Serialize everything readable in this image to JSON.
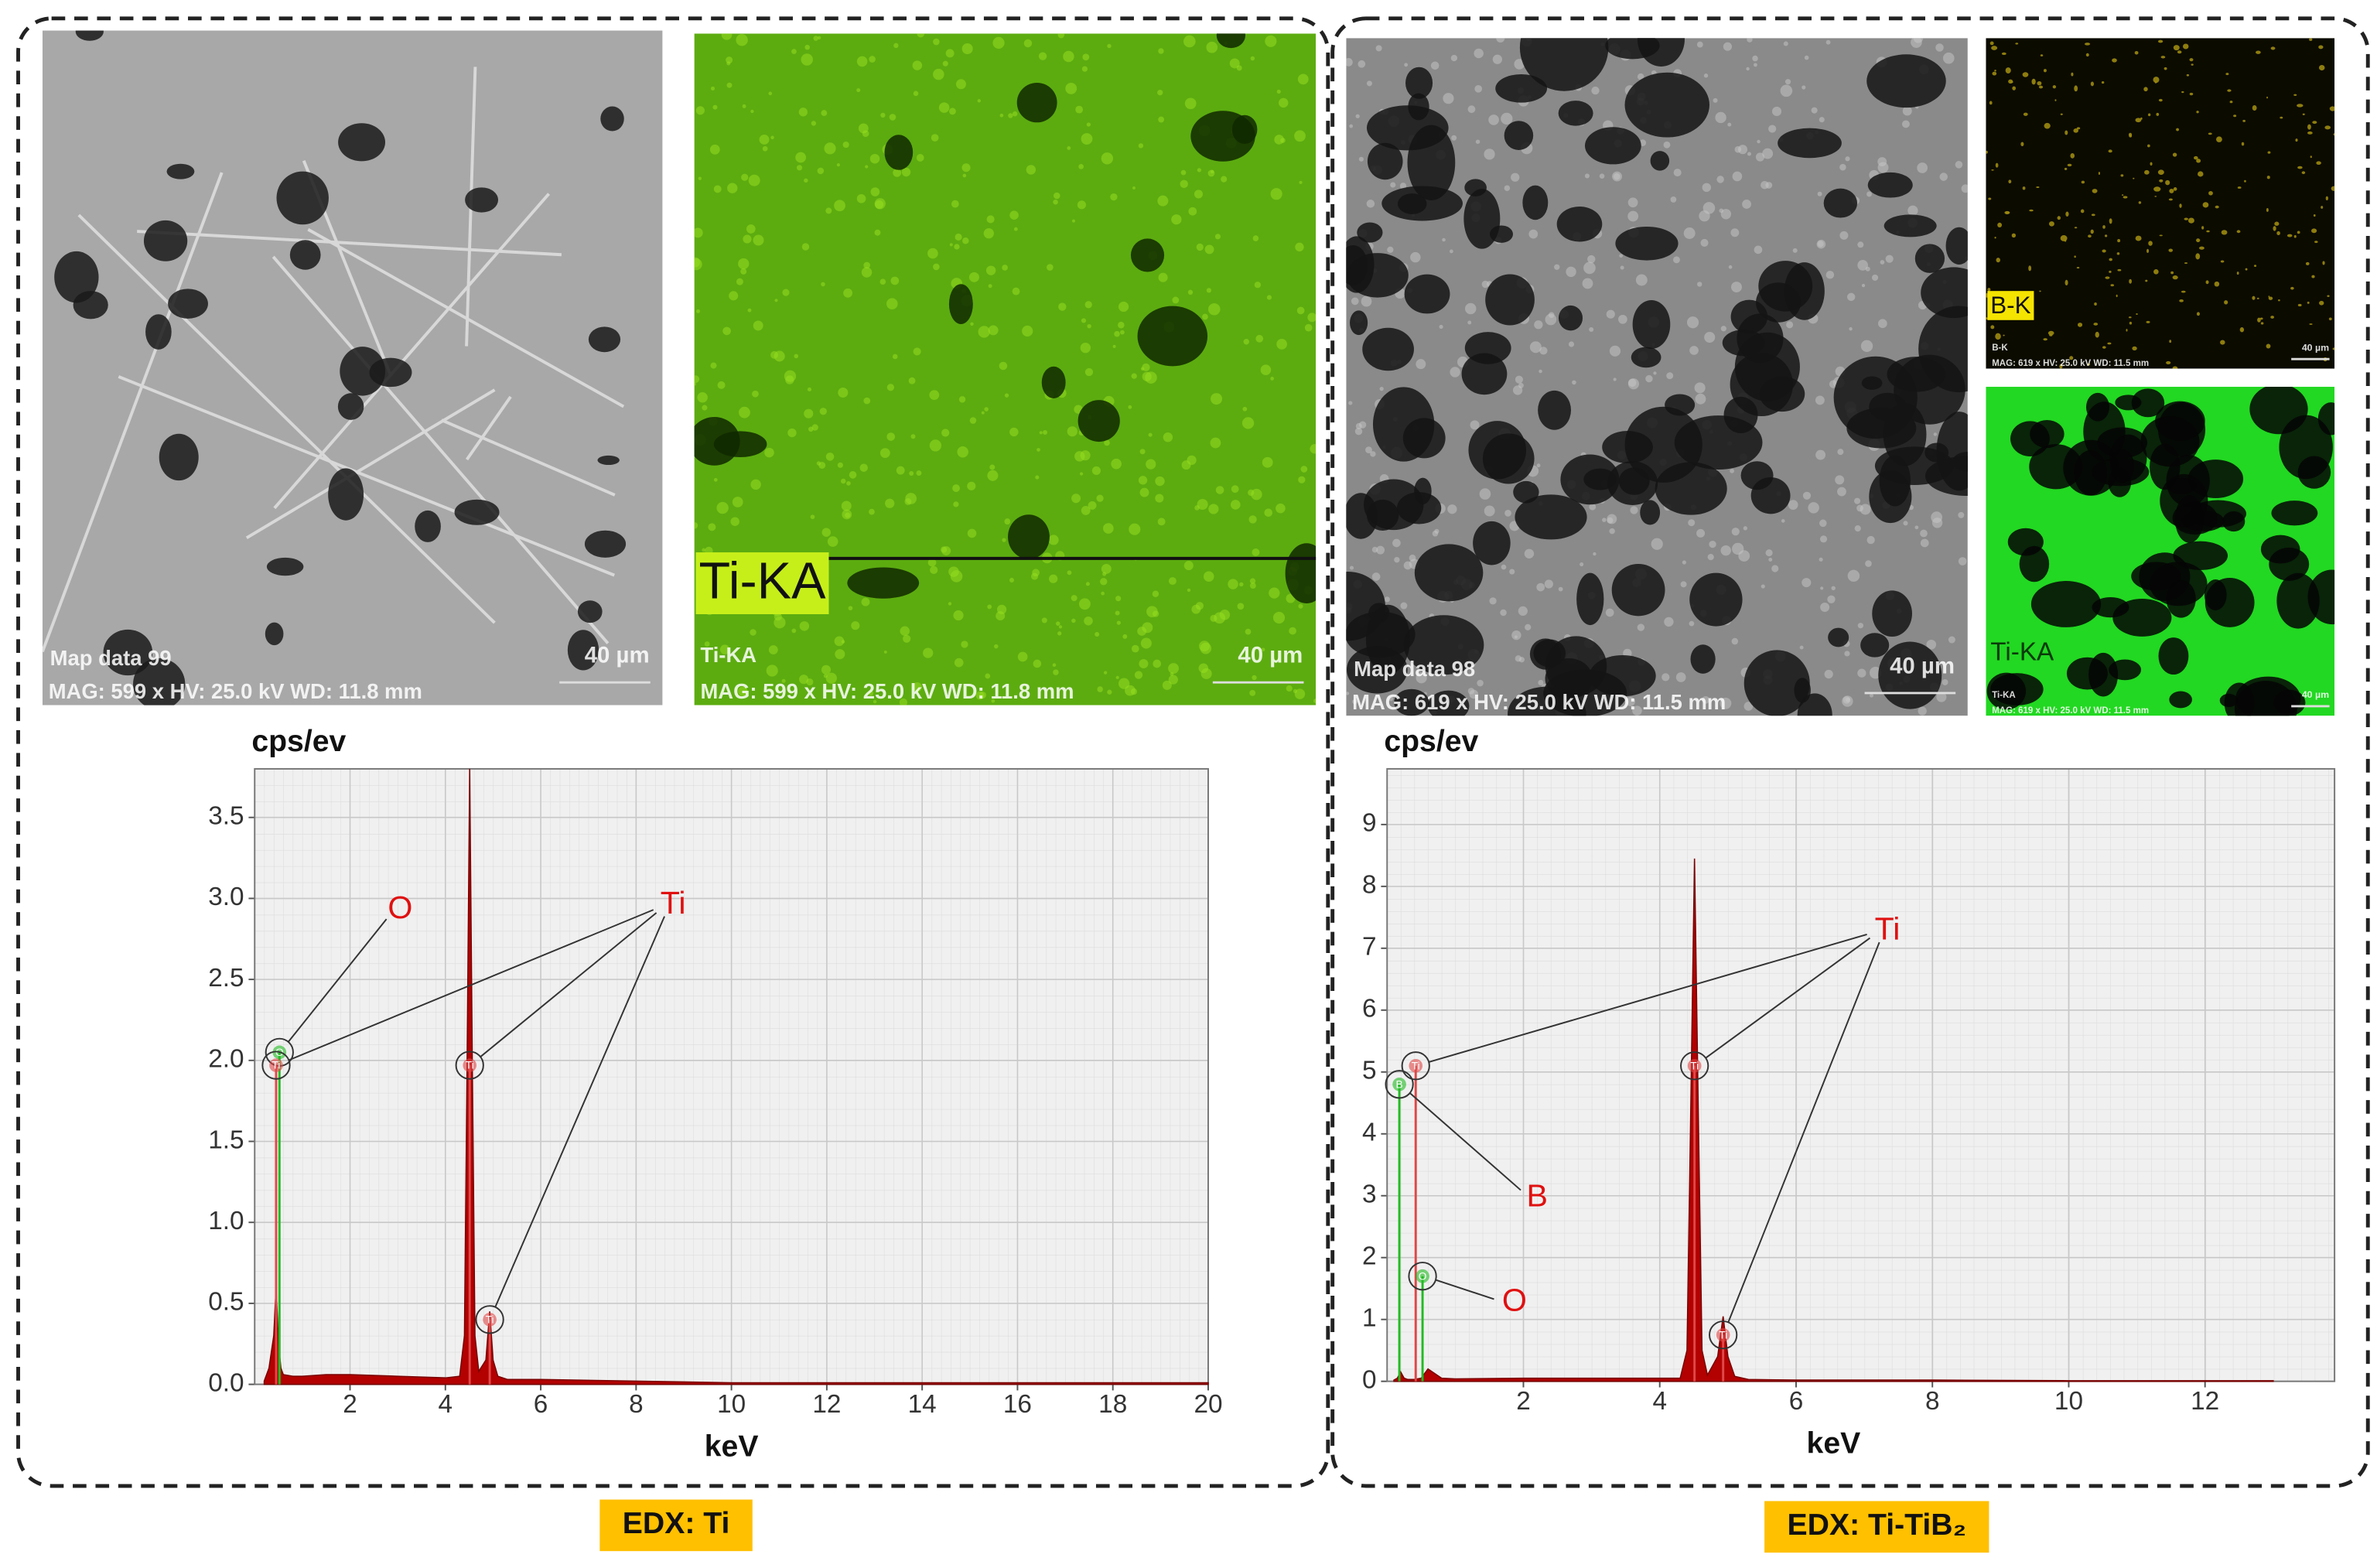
{
  "images": [
    {
      "title": "Map data 99",
      "scale_bar": "40 µm",
      "info": "MAG: 599 x HV: 25.0 kV WD: 11.8 mm"
    },
    {
      "label": "Ti-KA",
      "sublabel": "Ti-KA",
      "scale_bar": "40 µm",
      "info": "MAG: 599 x HV: 25.0 kV WD: 11.8 mm"
    },
    {
      "title": "Map data 98",
      "scale_bar": "40 µm",
      "info": "MAG: 619 x HV: 25.0 kV WD: 11.5 mm"
    },
    {
      "label": "B-K",
      "sublabel": "B-K",
      "scale_bar": "40 µm",
      "info": "MAG: 619 x HV: 25.0 kV WD: 11.5 mm"
    },
    {
      "label": "Ti-KA",
      "sublabel": "Ti-KA",
      "scale_bar": "40 µm",
      "info": "MAG: 619 x HV: 25.0 kV WD: 11.5 mm"
    }
  ],
  "chart_data": [
    {
      "type": "area",
      "caption": "EDX: Ti",
      "y_label": "cps/ev",
      "x_label": "keV",
      "color": "#b30000",
      "x": [
        0.2,
        0.3,
        0.4,
        0.45,
        0.5,
        0.55,
        0.6,
        0.8,
        1.0,
        1.5,
        2,
        3,
        4,
        4.3,
        4.4,
        4.45,
        4.51,
        4.57,
        4.62,
        4.7,
        4.85,
        4.93,
        5.0,
        5.1,
        5.3,
        6,
        8,
        10,
        12,
        14,
        16,
        18,
        20
      ],
      "values": [
        0.02,
        0.1,
        0.3,
        0.6,
        0.25,
        0.1,
        0.06,
        0.05,
        0.05,
        0.06,
        0.06,
        0.05,
        0.04,
        0.05,
        0.3,
        1.8,
        3.8,
        1.8,
        0.3,
        0.08,
        0.15,
        0.45,
        0.15,
        0.05,
        0.03,
        0.03,
        0.02,
        0.01,
        0.01,
        0.01,
        0.01,
        0.01,
        0.01
      ],
      "xlim": [
        0,
        20
      ],
      "ylim": [
        0,
        3.8
      ],
      "xticks": [
        2,
        4,
        6,
        8,
        10,
        12,
        14,
        16,
        18,
        20
      ],
      "yticks": [
        {
          "value": 0,
          "label": "0.0"
        },
        0.5,
        {
          "value": 1,
          "label": "1.0"
        },
        1.5,
        {
          "value": 2,
          "label": "2.0"
        },
        2.5,
        {
          "value": 3,
          "label": "3.0"
        },
        3.5
      ],
      "grid": true,
      "markers": [
        {
          "label": "O",
          "x": 0.52,
          "y": 2.05,
          "color": "#22bb22"
        },
        {
          "label": "Ti",
          "x": 0.45,
          "y": 1.97,
          "color": "#e04848"
        },
        {
          "label": "Ti",
          "x": 4.51,
          "y": 1.97,
          "color": "#e04848"
        },
        {
          "label": "Ti",
          "x": 4.93,
          "y": 0.4,
          "color": "#e04848"
        }
      ],
      "annotations": [
        "O",
        "Ti"
      ]
    },
    {
      "type": "area",
      "caption": "EDX: Ti-TiB₂",
      "y_label": "cps/ev",
      "x_label": "keV",
      "color": "#b30000",
      "x": [
        0.1,
        0.15,
        0.2,
        0.25,
        0.3,
        0.4,
        0.5,
        0.6,
        0.8,
        1,
        2,
        3,
        4,
        4.3,
        4.4,
        4.45,
        4.51,
        4.57,
        4.62,
        4.7,
        4.85,
        4.93,
        5.0,
        5.1,
        5.3,
        6,
        8,
        10,
        12,
        13
      ],
      "values": [
        0.02,
        0.05,
        0.15,
        0.05,
        0.03,
        0.03,
        0.05,
        0.2,
        0.05,
        0.04,
        0.05,
        0.05,
        0.05,
        0.05,
        0.5,
        4,
        8.45,
        4,
        0.5,
        0.1,
        0.4,
        1.05,
        0.4,
        0.08,
        0.03,
        0.02,
        0.02,
        0.01,
        0.01,
        0.01
      ],
      "xlim": [
        0,
        13.9
      ],
      "ylim": [
        0,
        9.9
      ],
      "xticks": [
        2,
        4,
        6,
        8,
        10,
        12
      ],
      "yticks": [
        0,
        1,
        2,
        3,
        4,
        5,
        6,
        7,
        8,
        9
      ],
      "grid": true,
      "markers": [
        {
          "label": "Ti",
          "x": 0.42,
          "y": 5.1,
          "color": "#e04848"
        },
        {
          "label": "B",
          "x": 0.18,
          "y": 4.8,
          "color": "#22bb22"
        },
        {
          "label": "O",
          "x": 0.52,
          "y": 1.7,
          "color": "#22bb22"
        },
        {
          "label": "Ti",
          "x": 4.51,
          "y": 5.1,
          "color": "#e04848"
        },
        {
          "label": "Ti",
          "x": 4.93,
          "y": 0.75,
          "color": "#e04848"
        }
      ],
      "annotations": [
        "Ti",
        "B",
        "O"
      ]
    }
  ]
}
